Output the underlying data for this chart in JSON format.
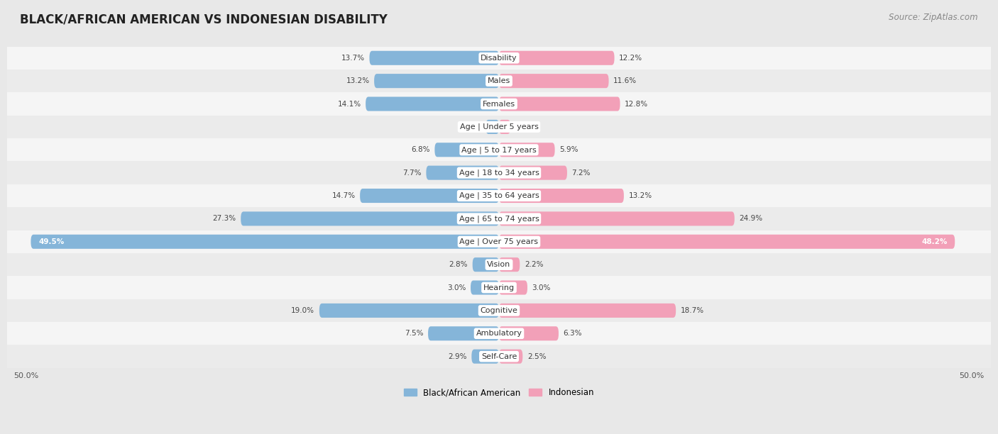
{
  "title": "BLACK/AFRICAN AMERICAN VS INDONESIAN DISABILITY",
  "source": "Source: ZipAtlas.com",
  "categories": [
    "Disability",
    "Males",
    "Females",
    "Age | Under 5 years",
    "Age | 5 to 17 years",
    "Age | 18 to 34 years",
    "Age | 35 to 64 years",
    "Age | 65 to 74 years",
    "Age | Over 75 years",
    "Vision",
    "Hearing",
    "Cognitive",
    "Ambulatory",
    "Self-Care"
  ],
  "left_values": [
    13.7,
    13.2,
    14.1,
    1.4,
    6.8,
    7.7,
    14.7,
    27.3,
    49.5,
    2.8,
    3.0,
    19.0,
    7.5,
    2.9
  ],
  "right_values": [
    12.2,
    11.6,
    12.8,
    1.2,
    5.9,
    7.2,
    13.2,
    24.9,
    48.2,
    2.2,
    3.0,
    18.7,
    6.3,
    2.5
  ],
  "left_color": "#85b5d9",
  "right_color": "#f2a0b8",
  "left_label": "Black/African American",
  "right_label": "Indonesian",
  "max_val": 50.0,
  "bg_color": "#e8e8e8",
  "row_colors": [
    "#f5f5f5",
    "#ebebeb"
  ],
  "title_fontsize": 12,
  "source_fontsize": 8.5,
  "label_fontsize": 8,
  "value_fontsize": 7.5,
  "axis_label_fontsize": 8
}
